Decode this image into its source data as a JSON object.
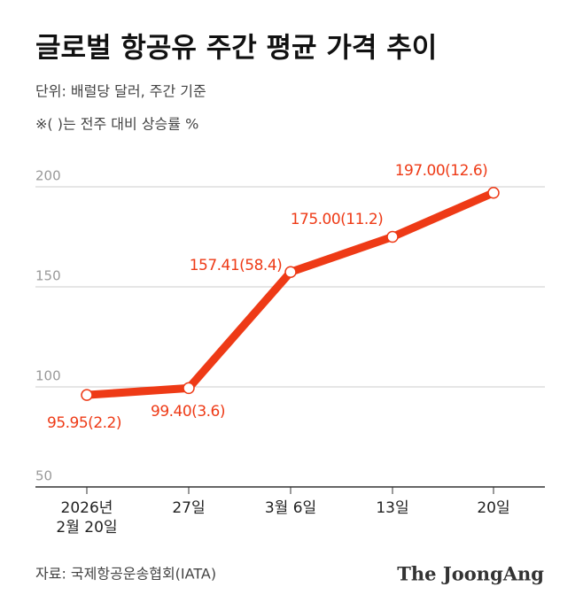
{
  "chart_data": {
    "type": "line",
    "title": "글로벌 항공유 주간 평균 가격 추이",
    "subtitle": "단위: 배럴당 달러, 주간 기준",
    "note": "※( )는 전주 대비 상승률 %",
    "categories": [
      "2026년\n2월 20일",
      "27일",
      "3월 6일",
      "13일",
      "20일"
    ],
    "series": [
      {
        "name": "항공유 가격",
        "color": "#ee3a16",
        "values": [
          95.95,
          99.4,
          157.41,
          175.0,
          197.0
        ],
        "value_labels": [
          "95.95(2.2)",
          "99.40(3.6)",
          "157.41(58.4)",
          "175.00(11.2)",
          "197.00(12.6)"
        ]
      }
    ],
    "ylim": [
      50,
      200
    ],
    "yticks": [
      50,
      100,
      150,
      200
    ],
    "grid": true,
    "source": "자료: 국제항공운송협회(IATA)",
    "brand": "The JoongAng"
  }
}
